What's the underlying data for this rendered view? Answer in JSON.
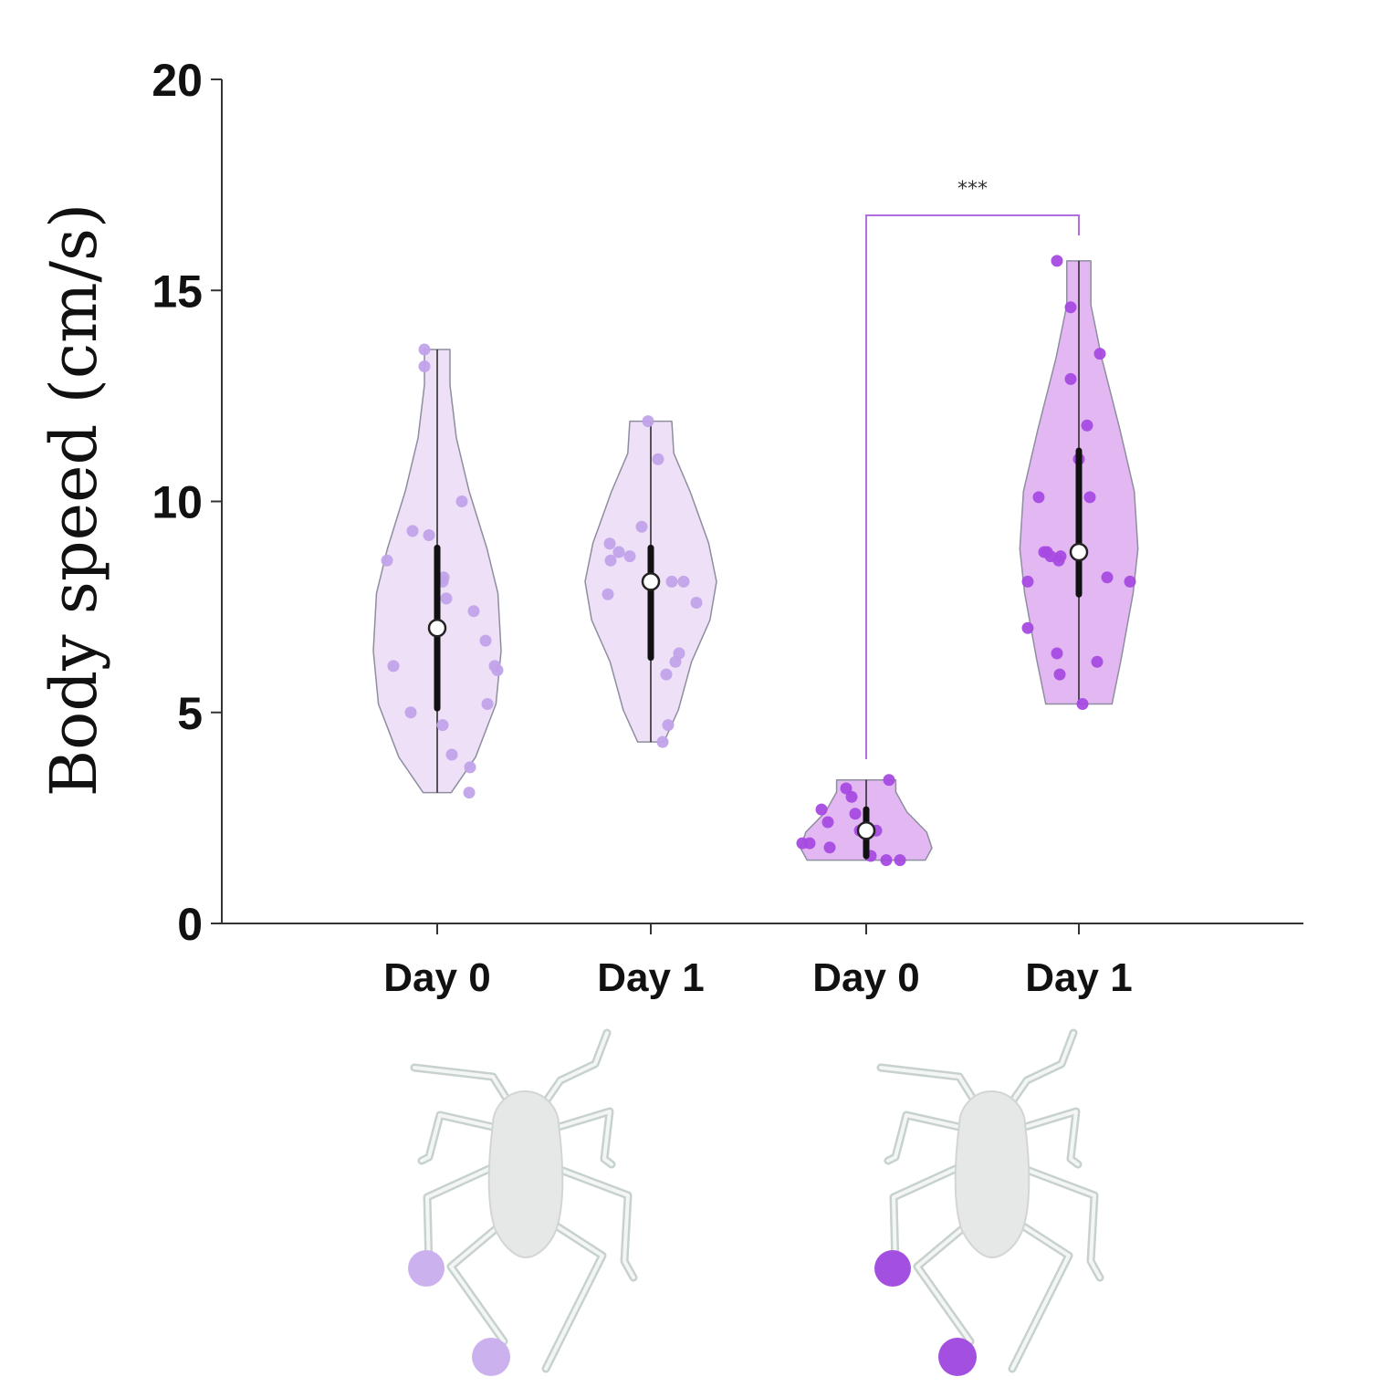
{
  "chart_data": {
    "type": "violin",
    "ylabel": "Body speed (cm/s)",
    "xlabel": "",
    "ylim": [
      0,
      20
    ],
    "yticks": [
      0,
      5,
      10,
      15,
      20
    ],
    "categories": [
      "Day 0",
      "Day 1",
      "Day 0",
      "Day 1"
    ],
    "groups": [
      {
        "label": "Day 0",
        "color": "#c9a6e8",
        "fill": "#ede0f7",
        "point_color": "#c2a2ea",
        "min": 3.1,
        "max": 13.6,
        "median": 7.0,
        "q1": 5.1,
        "q3": 8.9,
        "points": [
          13.6,
          13.2,
          10.0,
          9.3,
          9.2,
          8.6,
          8.2,
          8.1,
          7.7,
          7.4,
          6.7,
          6.1,
          6.1,
          6.0,
          5.2,
          5.0,
          4.7,
          4.0,
          3.7,
          3.1
        ]
      },
      {
        "label": "Day 1",
        "color": "#c9a6e8",
        "fill": "#ede0f7",
        "point_color": "#c2a2ea",
        "min": 4.3,
        "max": 11.9,
        "median": 8.1,
        "q1": 6.3,
        "q3": 8.9,
        "points": [
          11.9,
          11.0,
          9.4,
          9.0,
          8.8,
          8.7,
          8.6,
          8.1,
          8.1,
          7.8,
          7.6,
          6.4,
          6.2,
          5.9,
          4.7,
          4.3
        ]
      },
      {
        "label": "Day 0",
        "color": "#b080d8",
        "fill": "#e3b8f2",
        "point_color": "#a64ae0",
        "min": 1.5,
        "max": 3.4,
        "median": 2.2,
        "q1": 1.6,
        "q3": 2.7,
        "points": [
          3.4,
          3.2,
          3.0,
          2.7,
          2.6,
          2.4,
          2.2,
          2.2,
          1.9,
          1.9,
          1.8,
          1.6,
          1.5,
          1.5
        ]
      },
      {
        "label": "Day 1",
        "color": "#b080d8",
        "fill": "#e3b8f2",
        "point_color": "#a64ae0",
        "min": 5.2,
        "max": 15.7,
        "median": 8.8,
        "q1": 7.8,
        "q3": 11.2,
        "points": [
          15.7,
          14.6,
          13.5,
          12.9,
          11.8,
          11.0,
          10.1,
          10.1,
          8.8,
          8.8,
          8.7,
          8.7,
          8.6,
          8.2,
          8.1,
          8.1,
          7.0,
          6.4,
          6.2,
          5.9,
          5.2
        ]
      }
    ],
    "significance": {
      "between": [
        2,
        3
      ],
      "label": "***",
      "color": "#b06fdc"
    }
  },
  "illustrations": [
    {
      "name": "insect-light",
      "dot_color": "#cbb2ee"
    },
    {
      "name": "insect-dark",
      "dot_color": "#a34fe0"
    }
  ]
}
